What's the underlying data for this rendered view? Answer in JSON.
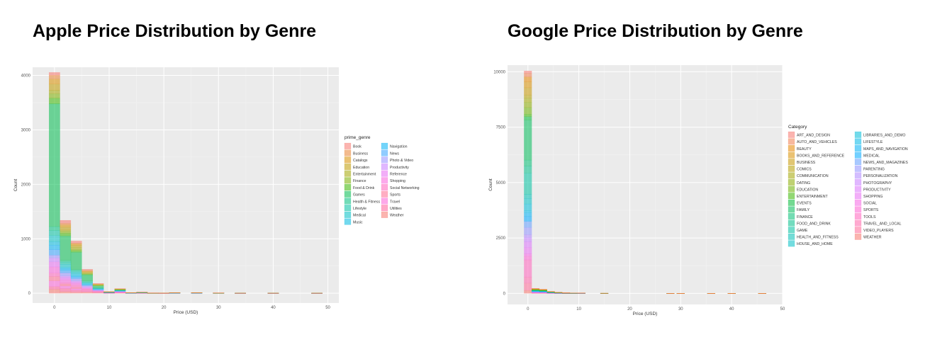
{
  "charts": [
    {
      "id": "apple",
      "heading": "Apple Price Distribution by Genre",
      "chart_data": {
        "type": "bar",
        "stacked": true,
        "title": "Apple Price Distribution by Genre",
        "xlabel": "Price (USD)",
        "ylabel": "Count",
        "xlim": [
          -4,
          52
        ],
        "ylim": [
          -180,
          4150
        ],
        "xticks": [
          0,
          10,
          20,
          30,
          40,
          50
        ],
        "yticks": [
          0,
          1000,
          2000,
          3000,
          4000
        ],
        "bin_width": 2,
        "legend_title": "prime_genre",
        "legend_position": "right",
        "legend_columns": 2,
        "legend_rows": 12,
        "categories": [
          "Book",
          "Business",
          "Catalogs",
          "Education",
          "Entertainment",
          "Finance",
          "Food & Drink",
          "Games",
          "Health & Fitness",
          "Lifestyle",
          "Medical",
          "Music",
          "Navigation",
          "News",
          "Photo & Video",
          "Productivity",
          "Reference",
          "Shopping",
          "Social Networking",
          "Sports",
          "Travel",
          "Utilities",
          "Weather"
        ],
        "colors": [
          "#f8766d",
          "#ea8331",
          "#d89000",
          "#c09b00",
          "#a3a500",
          "#7cae00",
          "#39b600",
          "#00bb4e",
          "#00bf7d",
          "#00c1a3",
          "#00bfc4",
          "#00bae0",
          "#00b0f6",
          "#35a2ff",
          "#9590ff",
          "#c77cff",
          "#e76bf3",
          "#fa62db",
          "#ff62bc",
          "#ff6c91",
          "#fb61d7",
          "#ff5f9a",
          "#f8766d"
        ],
        "total_counts": [
          {
            "x": 0,
            "y": 4056
          },
          {
            "x": 2,
            "y": 1340
          },
          {
            "x": 4,
            "y": 960
          },
          {
            "x": 6,
            "y": 440
          },
          {
            "x": 8,
            "y": 180
          },
          {
            "x": 10,
            "y": 30
          },
          {
            "x": 12,
            "y": 85
          },
          {
            "x": 14,
            "y": 12
          },
          {
            "x": 16,
            "y": 22
          },
          {
            "x": 18,
            "y": 8
          },
          {
            "x": 20,
            "y": 5
          },
          {
            "x": 22,
            "y": 12
          },
          {
            "x": 26,
            "y": 12
          },
          {
            "x": 30,
            "y": 8
          },
          {
            "x": 34,
            "y": 3
          },
          {
            "x": 40,
            "y": 3
          },
          {
            "x": 48,
            "y": 3
          }
        ],
        "games_counts": [
          {
            "x": 0,
            "y": 2257
          },
          {
            "x": 2,
            "y": 450
          },
          {
            "x": 4,
            "y": 320
          },
          {
            "x": 6,
            "y": 110
          },
          {
            "x": 8,
            "y": 35
          }
        ]
      }
    },
    {
      "id": "google",
      "heading": "Google Price Distribution by Genre",
      "chart_data": {
        "type": "bar",
        "stacked": true,
        "title": "Google Price Distribution by Genre",
        "xlabel": "Price (USD)",
        "ylabel": "Count",
        "xlim": [
          -4,
          50
        ],
        "ylim": [
          -500,
          10300
        ],
        "xticks": [
          0,
          10,
          20,
          30,
          40,
          50
        ],
        "yticks": [
          0,
          2500,
          5000,
          7500,
          10000
        ],
        "bin_width": 1.5,
        "legend_title": "Category",
        "legend_position": "right",
        "legend_columns": 2,
        "legend_rows": 17,
        "categories": [
          "ART_AND_DESIGN",
          "AUTO_AND_VEHICLES",
          "BEAUTY",
          "BOOKS_AND_REFERENCE",
          "BUSINESS",
          "COMICS",
          "COMMUNICATION",
          "DATING",
          "EDUCATION",
          "ENTERTAINMENT",
          "EVENTS",
          "FAMILY",
          "FINANCE",
          "FOOD_AND_DRINK",
          "GAME",
          "HEALTH_AND_FITNESS",
          "HOUSE_AND_HOME",
          "LIBRARIES_AND_DEMO",
          "LIFESTYLE",
          "MAPS_AND_NAVIGATION",
          "MEDICAL",
          "NEWS_AND_MAGAZINES",
          "PARENTING",
          "PERSONALIZATION",
          "PHOTOGRAPHY",
          "PRODUCTIVITY",
          "SHOPPING",
          "SOCIAL",
          "SPORTS",
          "TOOLS",
          "TRAVEL_AND_LOCAL",
          "VIDEO_PLAYERS",
          "WEATHER"
        ],
        "colors": [
          "#f8766d",
          "#f07e4e",
          "#e58700",
          "#d89000",
          "#c99800",
          "#b79f00",
          "#a3a500",
          "#8bab00",
          "#6bb100",
          "#39b600",
          "#00ba38",
          "#00bc59",
          "#00bf74",
          "#00c08b",
          "#00c1a1",
          "#00c0b5",
          "#00bfc4",
          "#00bcd8",
          "#00b8e7",
          "#00b0f6",
          "#00a9ff",
          "#619cff",
          "#8f91ff",
          "#ae87ff",
          "#c77cff",
          "#db72fb",
          "#e76bf3",
          "#f564e3",
          "#fd61d1",
          "#ff62bc",
          "#ff65aa",
          "#ff6a98",
          "#f8766d"
        ],
        "total_counts": [
          {
            "x": 0,
            "y": 10040
          },
          {
            "x": 1.5,
            "y": 230
          },
          {
            "x": 3,
            "y": 190
          },
          {
            "x": 4.5,
            "y": 90
          },
          {
            "x": 6,
            "y": 50
          },
          {
            "x": 7.5,
            "y": 30
          },
          {
            "x": 9,
            "y": 15
          },
          {
            "x": 10.5,
            "y": 20
          },
          {
            "x": 15,
            "y": 10
          },
          {
            "x": 28,
            "y": 4
          },
          {
            "x": 30,
            "y": 2
          },
          {
            "x": 36,
            "y": 2
          },
          {
            "x": 40,
            "y": 3
          },
          {
            "x": 46,
            "y": 2
          }
        ]
      }
    }
  ]
}
